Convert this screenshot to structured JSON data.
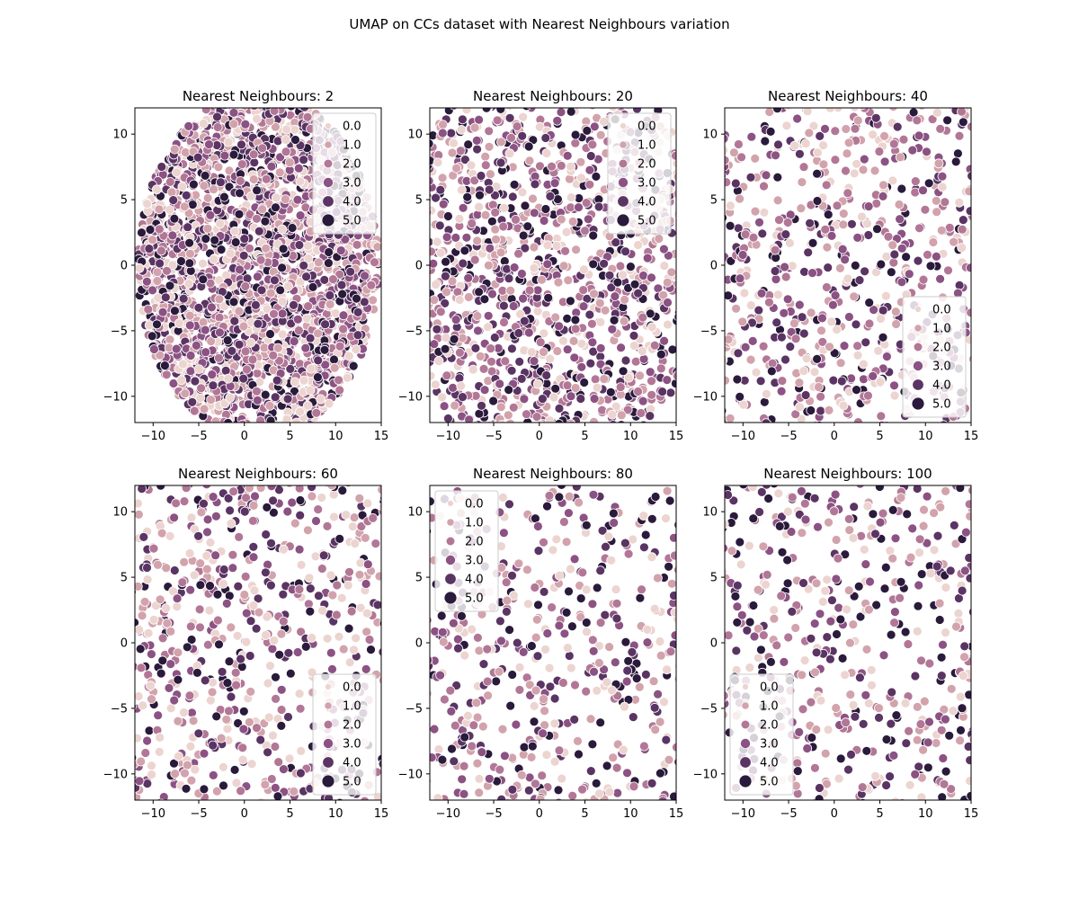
{
  "figure": {
    "title": "UMAP on CCs dataset with Nearest Neighbours variation"
  },
  "palette": {
    "levels": [
      "0.0",
      "1.0",
      "2.0",
      "3.0",
      "4.0",
      "5.0"
    ],
    "colors": [
      "#ecd4d0",
      "#d2a3ac",
      "#b27796",
      "#8b5283",
      "#5a3463",
      "#2a1a3b"
    ],
    "edge": "#ffffff",
    "legend_frame": "#cccccc"
  },
  "chart_data": [
    {
      "type": "scatter",
      "title": "Nearest Neighbours: 2",
      "n_neighbors": 2,
      "shape": "disc",
      "center": [
        1.5,
        0.0
      ],
      "radius": 13.2,
      "approx_points": 2600,
      "xlim": [
        -12,
        15
      ],
      "ylim": [
        -12,
        12
      ],
      "xticks": [
        -10,
        -5,
        0,
        5,
        10,
        15
      ],
      "yticks": [
        -10,
        -5,
        0,
        5,
        10
      ],
      "hue_levels": [
        "0.0",
        "1.0",
        "2.0",
        "3.0",
        "4.0",
        "5.0"
      ],
      "legend": {
        "location": "upper right",
        "entries": [
          "0.0",
          "1.0",
          "2.0",
          "3.0",
          "4.0",
          "5.0"
        ]
      }
    },
    {
      "type": "scatter",
      "title": "Nearest Neighbours: 20",
      "n_neighbors": 20,
      "shape": "disc",
      "center": [
        1.5,
        0.0
      ],
      "radius": 16.5,
      "approx_points": 1500,
      "xlim": [
        -12,
        15
      ],
      "ylim": [
        -12,
        12
      ],
      "xticks": [
        -10,
        -5,
        0,
        5,
        10,
        15
      ],
      "yticks": [
        -10,
        -5,
        0,
        5,
        10
      ],
      "hue_levels": [
        "0.0",
        "1.0",
        "2.0",
        "3.0",
        "4.0",
        "5.0"
      ],
      "legend": {
        "location": "upper right",
        "entries": [
          "0.0",
          "1.0",
          "2.0",
          "3.0",
          "4.0",
          "5.0"
        ]
      }
    },
    {
      "type": "scatter",
      "title": "Nearest Neighbours: 40",
      "n_neighbors": 40,
      "shape": "disc",
      "center": [
        1.5,
        0.0
      ],
      "radius": 18.0,
      "approx_points": 950,
      "xlim": [
        -12,
        15
      ],
      "ylim": [
        -12,
        12
      ],
      "xticks": [
        -10,
        -5,
        0,
        5,
        10,
        15
      ],
      "yticks": [
        -10,
        -5,
        0,
        5,
        10
      ],
      "hue_levels": [
        "0.0",
        "1.0",
        "2.0",
        "3.0",
        "4.0",
        "5.0"
      ],
      "legend": {
        "location": "lower right",
        "entries": [
          "0.0",
          "1.0",
          "2.0",
          "3.0",
          "4.0",
          "5.0"
        ]
      }
    },
    {
      "type": "scatter",
      "title": "Nearest Neighbours: 60",
      "n_neighbors": 60,
      "shape": "disc",
      "center": [
        1.5,
        0.0
      ],
      "radius": 19.0,
      "approx_points": 1050,
      "xlim": [
        -12,
        15
      ],
      "ylim": [
        -12,
        12
      ],
      "xticks": [
        -10,
        -5,
        0,
        5,
        10,
        15
      ],
      "yticks": [
        -10,
        -5,
        0,
        5,
        10
      ],
      "hue_levels": [
        "0.0",
        "1.0",
        "2.0",
        "3.0",
        "4.0",
        "5.0"
      ],
      "legend": {
        "location": "lower right",
        "entries": [
          "0.0",
          "1.0",
          "2.0",
          "3.0",
          "4.0",
          "5.0"
        ]
      }
    },
    {
      "type": "scatter",
      "title": "Nearest Neighbours: 80",
      "n_neighbors": 80,
      "shape": "disc",
      "center": [
        1.5,
        0.0
      ],
      "radius": 19.5,
      "approx_points": 850,
      "xlim": [
        -12,
        15
      ],
      "ylim": [
        -12,
        12
      ],
      "xticks": [
        -10,
        -5,
        0,
        5,
        10,
        15
      ],
      "yticks": [
        -10,
        -5,
        0,
        5,
        10
      ],
      "hue_levels": [
        "0.0",
        "1.0",
        "2.0",
        "3.0",
        "4.0",
        "5.0"
      ],
      "legend": {
        "location": "upper left",
        "entries": [
          "0.0",
          "1.0",
          "2.0",
          "3.0",
          "4.0",
          "5.0"
        ]
      }
    },
    {
      "type": "scatter",
      "title": "Nearest Neighbours: 100",
      "n_neighbors": 100,
      "shape": "disc",
      "center": [
        1.5,
        0.0
      ],
      "radius": 19.5,
      "approx_points": 850,
      "xlim": [
        -12,
        15
      ],
      "ylim": [
        -12,
        12
      ],
      "xticks": [
        -10,
        -5,
        0,
        5,
        10,
        15
      ],
      "yticks": [
        -10,
        -5,
        0,
        5,
        10
      ],
      "hue_levels": [
        "0.0",
        "1.0",
        "2.0",
        "3.0",
        "4.0",
        "5.0"
      ],
      "legend": {
        "location": "lower left",
        "entries": [
          "0.0",
          "1.0",
          "2.0",
          "3.0",
          "4.0",
          "5.0"
        ]
      }
    }
  ]
}
